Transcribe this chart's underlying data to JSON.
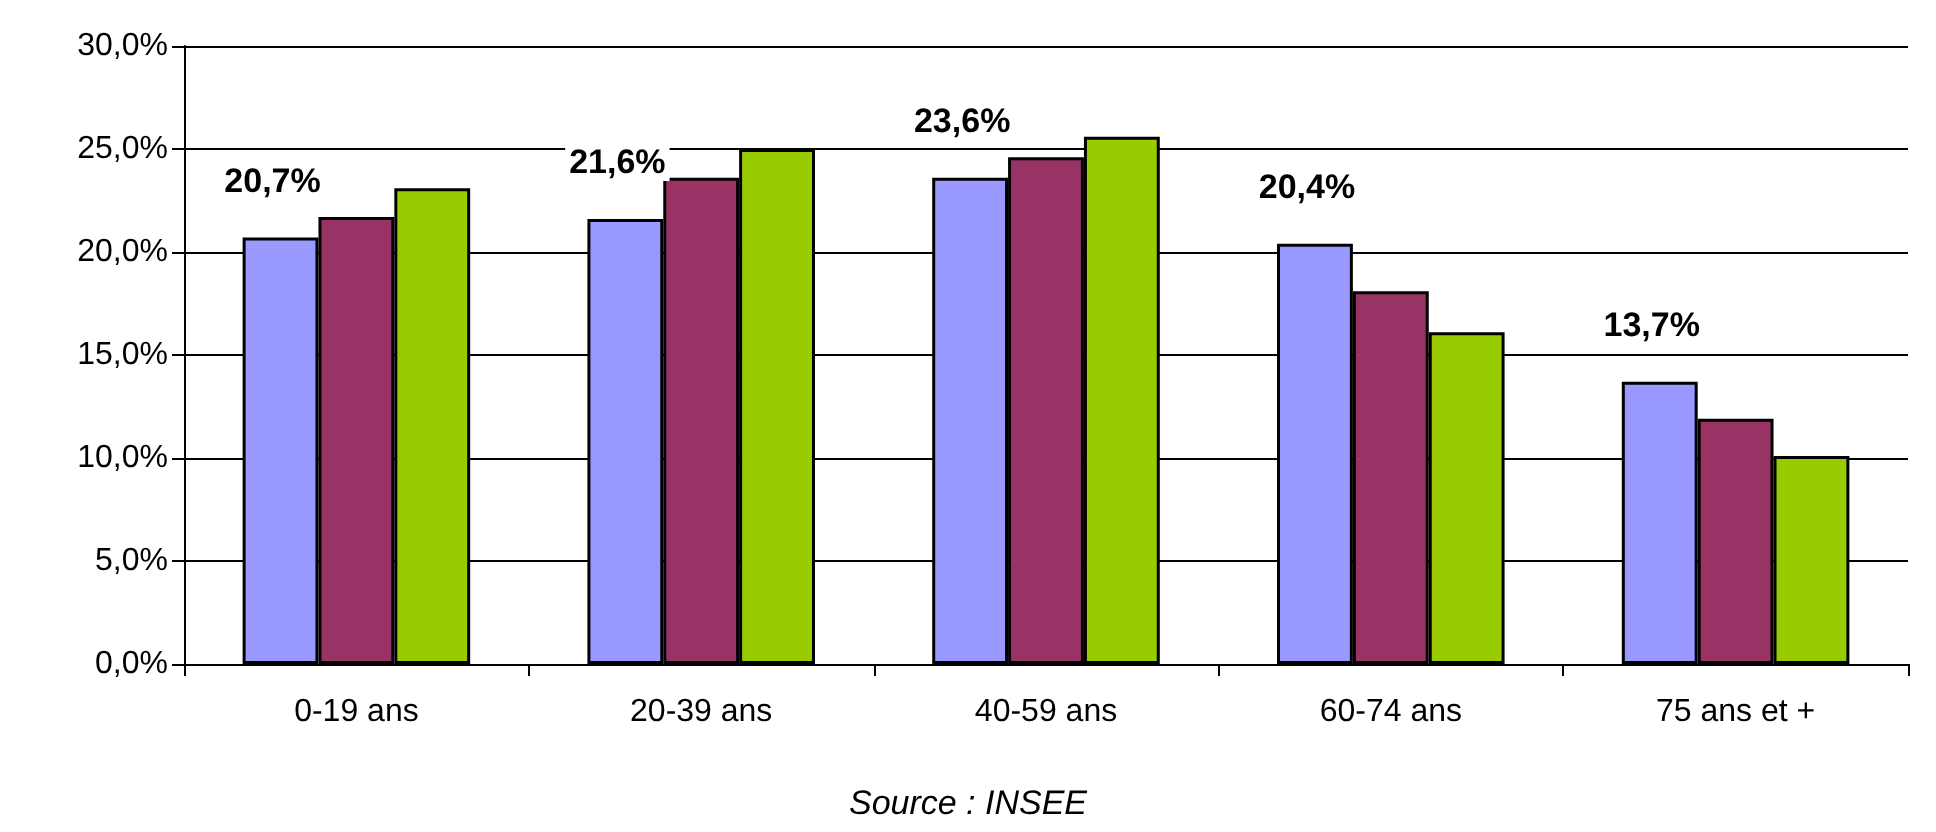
{
  "chart_data": {
    "type": "bar",
    "categories": [
      "0-19 ans",
      "20-39 ans",
      "40-59 ans",
      "60-74 ans",
      "75 ans et +"
    ],
    "series": [
      {
        "color": "#9999ff",
        "values": [
          20.7,
          21.6,
          23.6,
          20.4,
          13.7
        ],
        "value_labels": [
          "20,7%",
          "21,6%",
          "23,6%",
          "20,4%",
          "13,7%"
        ]
      },
      {
        "color": "#993366",
        "values": [
          21.7,
          23.6,
          24.6,
          18.1,
          11.9
        ]
      },
      {
        "color": "#99cc00",
        "values": [
          23.1,
          25.0,
          25.6,
          16.1,
          10.1
        ]
      }
    ],
    "ylim": [
      0,
      30
    ],
    "yticks": [
      {
        "value": 0,
        "label": "0,0%"
      },
      {
        "value": 5,
        "label": "5,0%"
      },
      {
        "value": 10,
        "label": "10,0%"
      },
      {
        "value": 15,
        "label": "15,0%"
      },
      {
        "value": 20,
        "label": "20,0%"
      },
      {
        "value": 25,
        "label": "25,0%"
      },
      {
        "value": 30,
        "label": "30,0%"
      }
    ],
    "grid": "y",
    "annotations": [
      "Source : INSEE"
    ]
  }
}
